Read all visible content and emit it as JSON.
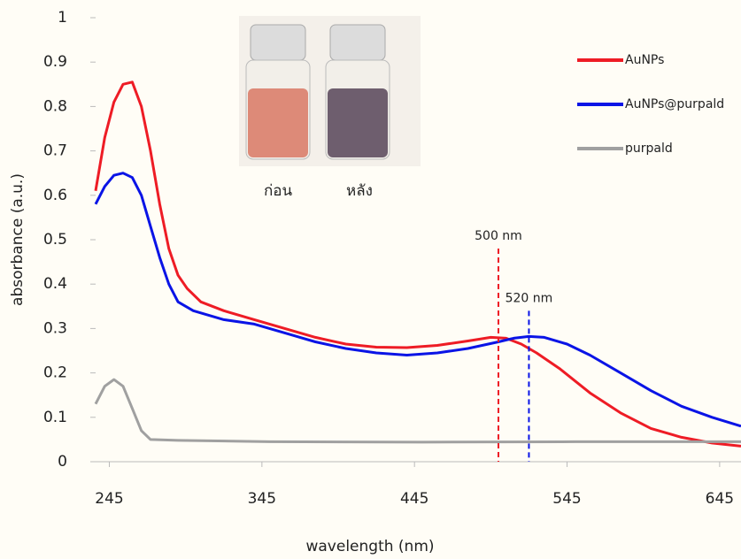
{
  "chart_data": {
    "type": "line",
    "xlabel": "wavelength (nm)",
    "ylabel": "absorbance (a.u.)",
    "xlim": [
      236,
      659
    ],
    "xticks": [
      245,
      345,
      445,
      545,
      645
    ],
    "ylim": [
      0,
      1
    ],
    "yticks": [
      0,
      0.1,
      0.2,
      0.3,
      0.4,
      0.5,
      0.6,
      0.7,
      0.8,
      0.9,
      1
    ],
    "legend": "upper right",
    "series": [
      {
        "name": "AuNPs",
        "color": "#ee1c25",
        "x": [
          236,
          242,
          248,
          254,
          260,
          266,
          272,
          278,
          284,
          290,
          296,
          305,
          320,
          340,
          360,
          380,
          400,
          420,
          440,
          460,
          480,
          495,
          505,
          515,
          525,
          540,
          560,
          580,
          600,
          620,
          640,
          659
        ],
        "values": [
          0.61,
          0.73,
          0.81,
          0.85,
          0.855,
          0.8,
          0.7,
          0.58,
          0.48,
          0.42,
          0.39,
          0.36,
          0.34,
          0.32,
          0.3,
          0.28,
          0.265,
          0.258,
          0.257,
          0.262,
          0.272,
          0.28,
          0.278,
          0.265,
          0.245,
          0.21,
          0.155,
          0.11,
          0.075,
          0.055,
          0.042,
          0.035
        ]
      },
      {
        "name": "AuNPs@purpald",
        "color": "#0a14e6",
        "x": [
          236,
          242,
          248,
          254,
          260,
          266,
          272,
          278,
          284,
          290,
          300,
          320,
          340,
          360,
          380,
          400,
          420,
          440,
          460,
          480,
          500,
          510,
          520,
          530,
          545,
          560,
          580,
          600,
          620,
          640,
          659
        ],
        "values": [
          0.58,
          0.62,
          0.645,
          0.65,
          0.64,
          0.6,
          0.53,
          0.46,
          0.4,
          0.36,
          0.34,
          0.32,
          0.31,
          0.29,
          0.27,
          0.255,
          0.245,
          0.24,
          0.245,
          0.255,
          0.27,
          0.278,
          0.282,
          0.28,
          0.265,
          0.24,
          0.2,
          0.16,
          0.125,
          0.1,
          0.08
        ]
      },
      {
        "name": "purpald",
        "color": "#a0a0a0",
        "x": [
          236,
          242,
          248,
          254,
          260,
          266,
          272,
          290,
          350,
          450,
          550,
          659
        ],
        "values": [
          0.13,
          0.17,
          0.185,
          0.17,
          0.12,
          0.07,
          0.05,
          0.048,
          0.045,
          0.044,
          0.045,
          0.045
        ]
      }
    ],
    "annotations": [
      {
        "x": 500,
        "top": 0.48,
        "label": "500 nm",
        "color": "#ee1c25"
      },
      {
        "x": 520,
        "top": 0.34,
        "label": "520 nm",
        "color": "#0a14e6"
      }
    ],
    "inset_labels": [
      "ก่อน",
      "หลัง"
    ]
  }
}
